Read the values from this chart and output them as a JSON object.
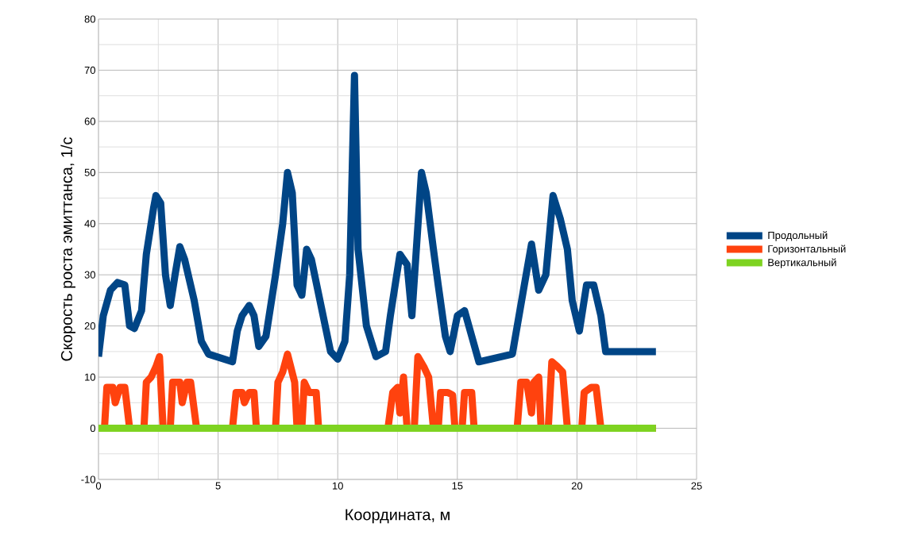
{
  "chart_data": {
    "type": "line",
    "xlabel": "Координата, м",
    "ylabel": "Скорость роста эмиттанса, 1/с",
    "xlim": [
      0,
      25
    ],
    "ylim": [
      -10,
      80
    ],
    "xticks": [
      0,
      5,
      10,
      15,
      20,
      25
    ],
    "yticks": [
      -10,
      0,
      10,
      20,
      30,
      40,
      50,
      60,
      70,
      80
    ],
    "grid": true,
    "legend": "right",
    "marker": "none",
    "line_style": "solid",
    "series": [
      {
        "name": "Продольный",
        "color": "#004586",
        "x": [
          0,
          0.2,
          0.5,
          0.8,
          1.1,
          1.3,
          1.5,
          1.8,
          2.0,
          2.3,
          2.4,
          2.6,
          2.8,
          3.0,
          3.2,
          3.4,
          3.6,
          4.0,
          4.3,
          4.6,
          5.6,
          5.8,
          6.0,
          6.3,
          6.5,
          6.7,
          7.0,
          7.4,
          7.7,
          7.9,
          8.1,
          8.3,
          8.5,
          8.7,
          8.9,
          9.3,
          9.7,
          10.0,
          10.3,
          10.5,
          10.7,
          10.85,
          11.2,
          11.6,
          12.0,
          12.2,
          12.6,
          12.9,
          13.1,
          13.3,
          13.5,
          13.7,
          14.0,
          14.2,
          14.5,
          14.7,
          15.0,
          15.3,
          15.6,
          15.9,
          17.3,
          17.8,
          18.1,
          18.4,
          18.7,
          19.0,
          19.3,
          19.6,
          19.8,
          20.1,
          20.4,
          20.7,
          21.0,
          21.2,
          22.0,
          23.3
        ],
        "values": [
          14,
          22,
          27,
          28.5,
          28,
          20,
          19.5,
          23,
          34,
          43,
          45.5,
          44,
          30,
          24,
          30,
          35.5,
          33,
          25,
          17,
          14.5,
          13,
          19,
          22,
          24,
          22,
          16,
          18,
          30,
          40,
          50,
          46,
          28,
          26,
          35,
          33,
          24,
          15,
          13.5,
          17,
          30,
          69,
          35,
          20,
          14,
          15,
          22,
          34,
          32,
          22,
          36,
          50,
          46,
          35,
          28,
          18,
          15,
          22,
          23,
          18,
          13,
          14.5,
          28,
          36,
          27,
          30,
          45.5,
          41,
          35,
          25,
          19,
          28,
          28,
          22,
          15,
          15,
          15
        ]
      },
      {
        "name": "Горизонтальный",
        "color": "#ff420e",
        "x": [
          0,
          0.25,
          0.35,
          0.6,
          0.7,
          0.9,
          1.1,
          1.3,
          1.9,
          2.0,
          2.2,
          2.4,
          2.55,
          2.7,
          3.0,
          3.1,
          3.4,
          3.5,
          3.7,
          3.85,
          4.1,
          5.6,
          5.75,
          6.0,
          6.1,
          6.3,
          6.5,
          6.6,
          7.4,
          7.5,
          7.7,
          7.9,
          8.2,
          8.3,
          8.5,
          8.6,
          8.8,
          9.1,
          9.2,
          12.1,
          12.3,
          12.5,
          12.6,
          12.75,
          12.9,
          13.2,
          13.35,
          13.6,
          13.8,
          14.0,
          14.2,
          14.3,
          14.6,
          14.8,
          14.9,
          15.2,
          15.3,
          15.6,
          15.7,
          17.5,
          17.65,
          17.9,
          18.1,
          18.2,
          18.4,
          18.5,
          18.8,
          18.95,
          19.2,
          19.4,
          19.6,
          20.2,
          20.3,
          20.6,
          20.8,
          21.0,
          23.3
        ],
        "values": [
          0,
          0,
          8,
          8,
          5,
          8,
          8,
          0,
          0,
          9,
          10,
          12,
          14,
          0,
          0,
          9,
          9,
          5,
          9,
          9,
          0,
          0,
          7,
          7,
          5,
          7,
          7,
          0,
          0,
          9,
          11,
          14.5,
          9,
          0,
          0,
          9,
          7,
          7,
          0,
          0,
          7,
          8,
          3,
          10,
          0,
          0,
          14,
          12,
          10,
          0,
          0,
          7,
          7,
          6.5,
          0,
          0,
          7,
          7,
          0,
          0,
          9,
          9,
          3,
          9,
          10,
          0,
          0,
          13,
          12,
          11,
          0,
          0,
          7,
          8,
          8,
          0,
          0
        ]
      },
      {
        "name": "Вертикальный",
        "color": "#7ed321",
        "x": [
          0,
          23.3
        ],
        "values": [
          0,
          0
        ]
      }
    ]
  }
}
